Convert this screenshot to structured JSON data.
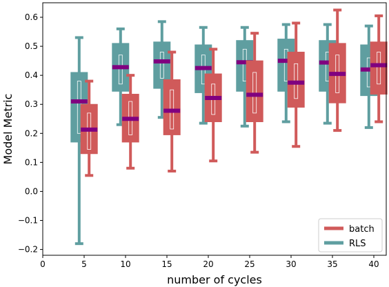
{
  "chart_data": {
    "type": "box",
    "title": "",
    "xlabel": "number of cycles",
    "ylabel": "Model Metric",
    "xlim": [
      0,
      41.5
    ],
    "ylim": [
      -0.22,
      0.65
    ],
    "xticks": [
      0,
      5,
      10,
      15,
      20,
      25,
      30,
      35,
      40
    ],
    "yticks": [
      -0.2,
      -0.1,
      0.0,
      0.1,
      0.2,
      0.3,
      0.4,
      0.5,
      0.6
    ],
    "ytick_labels": [
      "−0.2",
      "−0.1",
      "0.0",
      "0.1",
      "0.2",
      "0.3",
      "0.4",
      "0.5",
      "0.6"
    ],
    "legend_position": "lower right",
    "median_color": "#800080",
    "series": [
      {
        "name": "RLS",
        "color": "#5F9EA0",
        "x_offset": -0.6,
        "stats": [
          {
            "x": 5,
            "whislo": -0.18,
            "q1": 0.17,
            "notch_lo": 0.2,
            "med": 0.31,
            "notch_hi": 0.38,
            "q3": 0.41,
            "whishi": 0.53
          },
          {
            "x": 10,
            "whislo": 0.23,
            "q1": 0.345,
            "notch_lo": 0.37,
            "med": 0.428,
            "notch_hi": 0.47,
            "q3": 0.51,
            "whishi": 0.56
          },
          {
            "x": 15,
            "whislo": 0.255,
            "q1": 0.355,
            "notch_lo": 0.39,
            "med": 0.448,
            "notch_hi": 0.48,
            "q3": 0.515,
            "whishi": 0.585
          },
          {
            "x": 20,
            "whislo": 0.235,
            "q1": 0.34,
            "notch_lo": 0.37,
            "med": 0.425,
            "notch_hi": 0.47,
            "q3": 0.505,
            "whishi": 0.565
          },
          {
            "x": 25,
            "whislo": 0.225,
            "q1": 0.345,
            "notch_lo": 0.38,
            "med": 0.445,
            "notch_hi": 0.49,
            "q3": 0.52,
            "whishi": 0.565
          },
          {
            "x": 30,
            "whislo": 0.24,
            "q1": 0.345,
            "notch_lo": 0.38,
            "med": 0.45,
            "notch_hi": 0.49,
            "q3": 0.525,
            "whishi": 0.575
          },
          {
            "x": 35,
            "whislo": 0.235,
            "q1": 0.345,
            "notch_lo": 0.38,
            "med": 0.444,
            "notch_hi": 0.48,
            "q3": 0.52,
            "whishi": 0.575
          },
          {
            "x": 40,
            "whislo": 0.22,
            "q1": 0.33,
            "notch_lo": 0.36,
            "med": 0.42,
            "notch_hi": 0.46,
            "q3": 0.505,
            "whishi": 0.57
          }
        ]
      },
      {
        "name": "batch",
        "color": "#D05A5A",
        "x_offset": 0.6,
        "stats": [
          {
            "x": 5,
            "whislo": 0.055,
            "q1": 0.13,
            "notch_lo": 0.145,
            "med": 0.213,
            "notch_hi": 0.27,
            "q3": 0.3,
            "whishi": 0.38
          },
          {
            "x": 10,
            "whislo": 0.08,
            "q1": 0.17,
            "notch_lo": 0.195,
            "med": 0.25,
            "notch_hi": 0.31,
            "q3": 0.335,
            "whishi": 0.4
          },
          {
            "x": 15,
            "whislo": 0.07,
            "q1": 0.195,
            "notch_lo": 0.215,
            "med": 0.278,
            "notch_hi": 0.35,
            "q3": 0.385,
            "whishi": 0.48
          },
          {
            "x": 20,
            "whislo": 0.105,
            "q1": 0.24,
            "notch_lo": 0.265,
            "med": 0.322,
            "notch_hi": 0.37,
            "q3": 0.405,
            "whishi": 0.49
          },
          {
            "x": 25,
            "whislo": 0.135,
            "q1": 0.24,
            "notch_lo": 0.27,
            "med": 0.333,
            "notch_hi": 0.41,
            "q3": 0.45,
            "whishi": 0.545
          },
          {
            "x": 30,
            "whislo": 0.155,
            "q1": 0.29,
            "notch_lo": 0.32,
            "med": 0.375,
            "notch_hi": 0.44,
            "q3": 0.48,
            "whishi": 0.58
          },
          {
            "x": 35,
            "whislo": 0.21,
            "q1": 0.305,
            "notch_lo": 0.34,
            "med": 0.405,
            "notch_hi": 0.47,
            "q3": 0.51,
            "whishi": 0.625
          },
          {
            "x": 40,
            "whislo": 0.24,
            "q1": 0.335,
            "notch_lo": 0.37,
            "med": 0.435,
            "notch_hi": 0.48,
            "q3": 0.515,
            "whishi": 0.605
          }
        ]
      }
    ],
    "legend": [
      {
        "name": "batch",
        "color": "#D05A5A"
      },
      {
        "name": "RLS",
        "color": "#5F9EA0"
      }
    ]
  }
}
